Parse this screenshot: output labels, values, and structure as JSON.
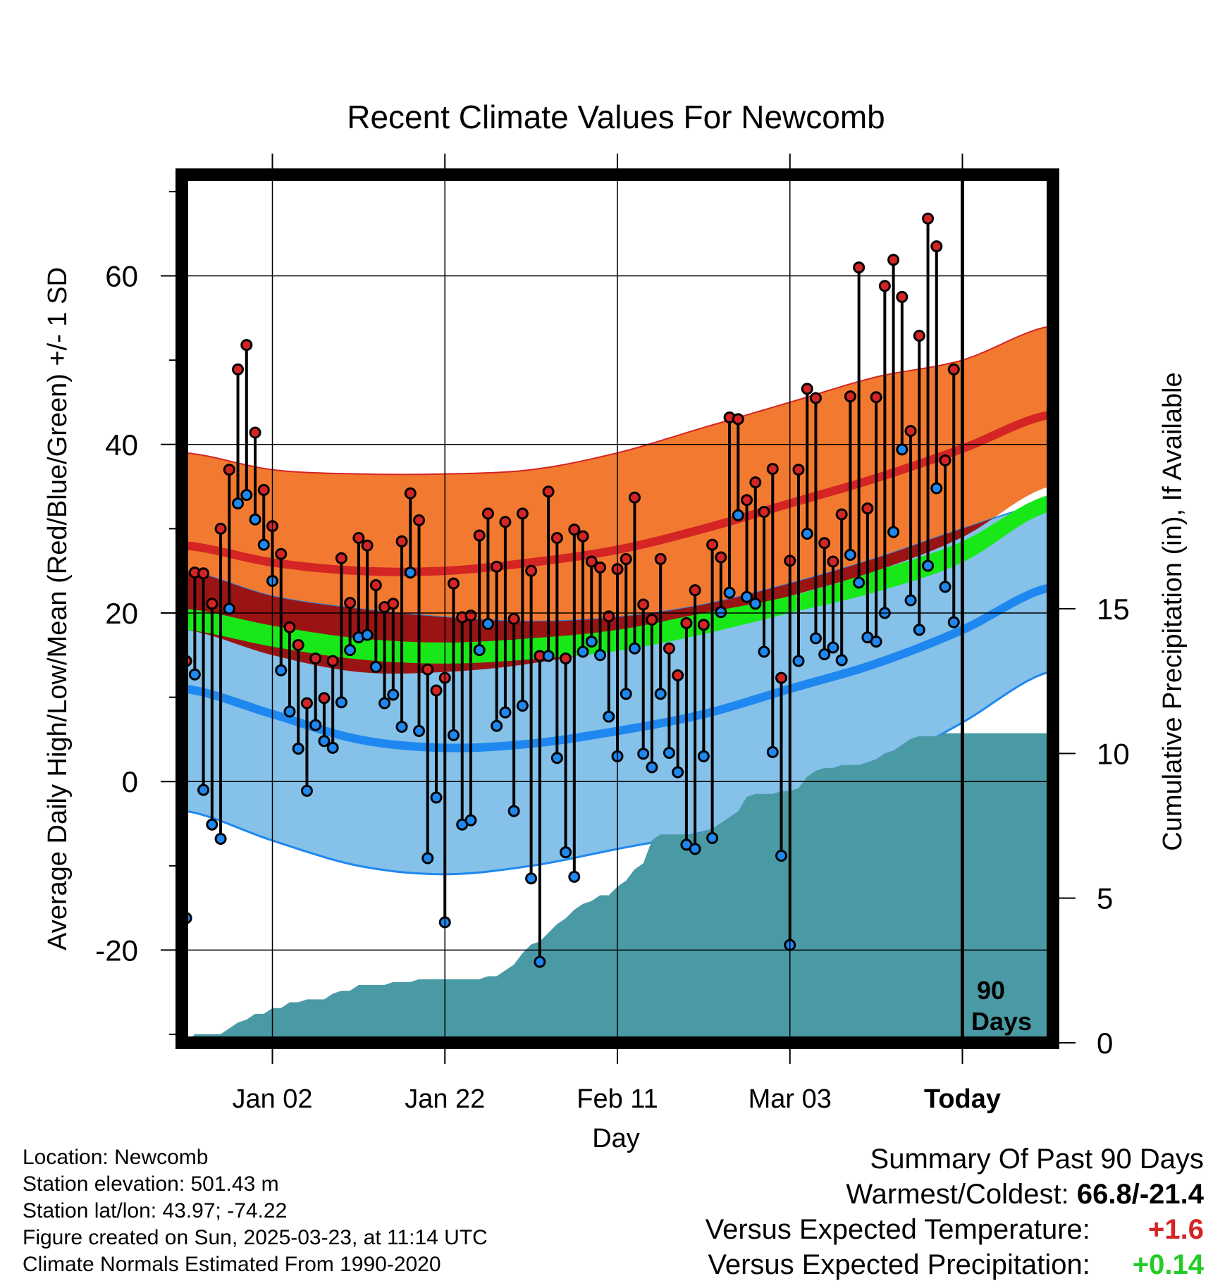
{
  "chart_data": {
    "type": "line",
    "title": "Recent Climate Values For Newcomb",
    "xlabel": "Day",
    "ylabel_left": "Average Daily High/Low/Mean (Red/Blue/Green) +/- 1 SD",
    "ylabel_right": "Cumulative Precipitation (in), If Available",
    "x_range_days": [
      -10.5,
      90.5
    ],
    "ylim_temp": [
      -31,
      72
    ],
    "ylim_precip": [
      0,
      30
    ],
    "grid": true,
    "x_ticks": [
      {
        "day": 0,
        "label": "Jan 02"
      },
      {
        "day": 20,
        "label": "Jan 22"
      },
      {
        "day": 40,
        "label": "Feb 11"
      },
      {
        "day": 60,
        "label": "Mar 03"
      },
      {
        "day": 80,
        "label": "Today"
      }
    ],
    "y_ticks_temp": [
      -20,
      0,
      20,
      40,
      60
    ],
    "y_ticks_precip": [
      0,
      5,
      10,
      15
    ],
    "today_marker": {
      "day": 80,
      "label_line1": "90",
      "label_line2": "Days"
    },
    "normals": {
      "days": [
        -10,
        0,
        10,
        20,
        30,
        40,
        50,
        60,
        70,
        80,
        90
      ],
      "high_upper": [
        39,
        37,
        36.5,
        36.5,
        37,
        39,
        42,
        45,
        48,
        50,
        54
      ],
      "high_mean": [
        28,
        26,
        25,
        25,
        26,
        27.5,
        30,
        33,
        36,
        39.5,
        43.5
      ],
      "high_lower": [
        18,
        15,
        13,
        13,
        14,
        16,
        19,
        22,
        25,
        29,
        35
      ],
      "mean_upper": [
        20.5,
        18.5,
        17,
        16.5,
        17,
        18,
        20,
        22,
        25,
        28.5,
        34
      ],
      "mean_lower": [
        18,
        16,
        14.5,
        14,
        14.5,
        15.5,
        17.5,
        20,
        22.5,
        26,
        32
      ],
      "low_upper": [
        25,
        22,
        20.5,
        19.5,
        19,
        19.5,
        21,
        23.5,
        26.5,
        30,
        33
      ],
      "low_mean": [
        11,
        8,
        5,
        4,
        4.5,
        6,
        8,
        11,
        14,
        18,
        23
      ],
      "low_lower": [
        -3.5,
        -7,
        -10,
        -11,
        -10,
        -8,
        -6,
        -3,
        1.5,
        7,
        13
      ]
    },
    "series": [
      {
        "name": "Daily High",
        "color": "#d42424",
        "values": [
          14.3,
          24.8,
          24.7,
          21.1,
          30.0,
          37.0,
          48.9,
          51.8,
          41.4,
          34.6,
          30.3,
          27.0,
          18.3,
          16.2,
          9.3,
          14.6,
          9.9,
          14.3,
          26.5,
          21.2,
          28.9,
          28.0,
          23.3,
          20.7,
          21.1,
          28.5,
          34.2,
          31.0,
          13.3,
          10.8,
          12.3,
          23.5,
          19.5,
          19.7,
          29.2,
          31.8,
          25.5,
          30.8,
          19.3,
          31.8,
          25.0,
          14.9,
          34.4,
          28.9,
          14.6,
          29.9,
          29.1,
          26.1,
          25.4,
          19.6,
          25.2,
          26.4,
          33.7,
          21.0,
          19.2,
          26.4,
          15.8,
          12.6,
          18.8,
          22.7,
          18.6,
          28.1,
          26.6,
          43.2,
          43.0,
          33.4,
          35.5,
          32.0,
          37.1,
          12.3,
          26.2,
          37.0,
          46.6,
          45.5,
          28.3,
          26.1,
          31.7,
          45.7,
          61.0,
          32.4,
          45.6,
          58.8,
          61.9,
          57.5,
          41.6,
          52.9,
          66.8,
          63.5,
          38.1,
          48.9
        ],
        "lows": [
          -16.2,
          12.7,
          -1.0,
          -5.1,
          -6.8,
          20.5,
          33.0,
          34.0,
          31.1,
          28.1,
          23.8,
          13.2,
          8.3,
          3.9,
          -1.1,
          6.7,
          4.8,
          4.0,
          9.4,
          15.6,
          17.1,
          17.4,
          13.6,
          9.3,
          10.3,
          6.5,
          24.8,
          6.0,
          -9.1,
          -1.9,
          -16.7,
          5.5,
          -5.1,
          -4.6,
          15.6,
          18.7,
          6.6,
          8.2,
          -3.5,
          9.0,
          -11.5,
          -21.4,
          14.9,
          2.8,
          -8.4,
          -11.3,
          15.4,
          16.6,
          15.0,
          7.7,
          3.0,
          10.4,
          15.8,
          3.3,
          1.7,
          10.4,
          3.4,
          1.1,
          -7.5,
          -8.0,
          3.0,
          -6.7,
          20.1,
          22.4,
          31.6,
          21.9,
          21.1,
          15.4,
          3.5,
          -8.8,
          -19.4,
          14.3,
          29.4,
          17.0,
          15.1,
          15.9,
          14.4,
          26.9,
          23.6,
          17.1,
          16.6,
          20.0,
          29.6,
          39.4,
          21.5,
          18.0,
          25.6,
          34.8,
          23.1,
          18.9
        ]
      }
    ],
    "cumulative_precip": {
      "days": [
        -10,
        -9,
        -8,
        -7,
        -6,
        -5,
        -4,
        -3,
        -2,
        -1,
        0,
        1,
        2,
        3,
        4,
        5,
        6,
        7,
        8,
        9,
        10,
        11,
        12,
        13,
        14,
        15,
        16,
        17,
        18,
        19,
        20,
        21,
        22,
        23,
        24,
        25,
        26,
        27,
        28,
        29,
        30,
        31,
        32,
        33,
        34,
        35,
        36,
        37,
        38,
        39,
        40,
        41,
        42,
        43,
        44,
        45,
        46,
        47,
        48,
        49,
        50,
        51,
        52,
        53,
        54,
        55,
        56,
        57,
        58,
        59,
        60,
        61,
        62,
        63,
        64,
        65,
        66,
        67,
        68,
        69,
        70,
        71,
        72,
        73,
        74,
        75,
        76,
        77,
        78,
        79,
        80,
        90
      ],
      "values": [
        0.0,
        0.3,
        0.3,
        0.3,
        0.3,
        0.5,
        0.7,
        0.8,
        1.0,
        1.0,
        1.2,
        1.2,
        1.4,
        1.4,
        1.5,
        1.5,
        1.5,
        1.7,
        1.8,
        1.8,
        2.0,
        2.0,
        2.0,
        2.0,
        2.1,
        2.1,
        2.1,
        2.2,
        2.2,
        2.2,
        2.2,
        2.2,
        2.2,
        2.2,
        2.2,
        2.3,
        2.3,
        2.5,
        2.7,
        3.1,
        3.4,
        3.5,
        3.8,
        4.1,
        4.3,
        4.6,
        4.8,
        4.9,
        5.1,
        5.1,
        5.4,
        5.6,
        6.0,
        6.2,
        7.0,
        7.2,
        7.2,
        7.2,
        7.2,
        7.2,
        7.3,
        7.4,
        7.6,
        7.8,
        8.0,
        8.5,
        8.6,
        8.6,
        8.6,
        8.7,
        8.7,
        8.8,
        9.2,
        9.4,
        9.5,
        9.5,
        9.6,
        9.6,
        9.6,
        9.7,
        9.8,
        10.0,
        10.1,
        10.3,
        10.5,
        10.6,
        10.6,
        10.6,
        10.7,
        10.7,
        10.7,
        10.7
      ]
    }
  },
  "footer": {
    "location": "Location: Newcomb",
    "elevation": "Station elevation: 501.43 m",
    "latlon": "Station lat/lon: 43.97; -74.22",
    "created": "Figure created on Sun, 2025-03-23, at 11:14 UTC",
    "normals": "Climate Normals Estimated From 1990-2020"
  },
  "summary": {
    "heading": "Summary Of Past 90 Days",
    "warm_cold_label": "Warmest/Coldest:",
    "warm_cold_value": "66.8/-21.4",
    "temp_label": "Versus Expected Temperature:",
    "temp_value": "+1.6",
    "temp_color": "#d42424",
    "precip_label": "Versus Expected Precipitation:",
    "precip_value": "+0.14",
    "precip_color": "#22cc22"
  },
  "colors": {
    "high_band": "#f27a30",
    "high_mean_line": "#d42424",
    "mean_band": "#9a1414",
    "mean_line": "#18e818",
    "low_band": "#85c1e8",
    "low_mean_line": "#1e88f0",
    "precip_area": "#4a9aa6",
    "high_dot": "#d42424",
    "low_dot": "#1e88f0"
  }
}
